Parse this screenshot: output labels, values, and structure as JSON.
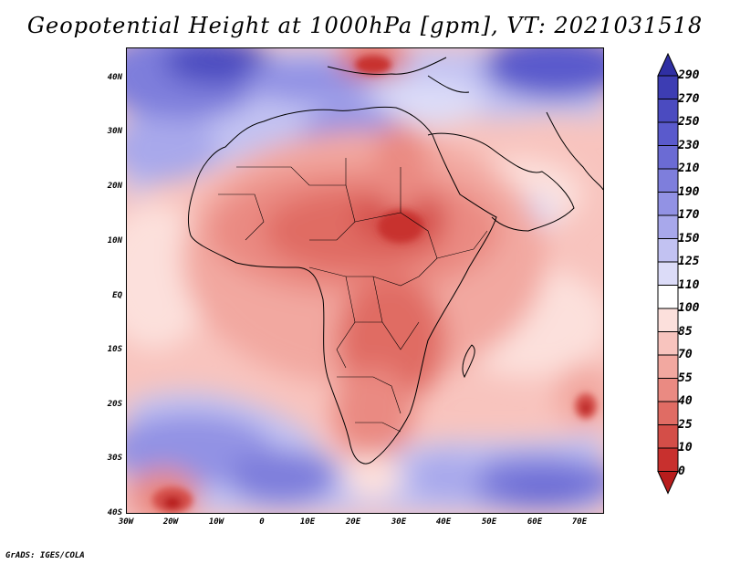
{
  "title": "Geopotential Height at 1000hPa [gpm], VT: 2021031518",
  "credit": "GrADS: IGES/COLA",
  "map": {
    "variable": "Geopotential Height",
    "level": "1000hPa",
    "units": "gpm",
    "valid_time": "2021031518",
    "lon_range": [
      -30,
      75
    ],
    "lat_range": [
      -40,
      45
    ],
    "lat_labels": [
      "40N",
      "30N",
      "20N",
      "10N",
      "EQ",
      "10S",
      "20S",
      "30S",
      "40S"
    ],
    "lon_labels": [
      "30W",
      "20W",
      "10W",
      "0",
      "10E",
      "20E",
      "30E",
      "40E",
      "50E",
      "60E",
      "70E"
    ]
  },
  "colorbar": {
    "labels": [
      "290",
      "270",
      "250",
      "230",
      "210",
      "190",
      "170",
      "150",
      "125",
      "110",
      "100",
      "85",
      "70",
      "55",
      "40",
      "25",
      "10",
      "0"
    ],
    "colors": [
      "#2f2fa3",
      "#3d3db3",
      "#4b4bc0",
      "#5a5acc",
      "#6b6bd4",
      "#7e7edc",
      "#9292e4",
      "#a8a8eb",
      "#c2c2f2",
      "#dcdcf8",
      "#ffffff",
      "#fce0dc",
      "#f8c4be",
      "#f2a8a0",
      "#ea8a82",
      "#e06c64",
      "#d44e48",
      "#c8302e",
      "#b81c1c"
    ]
  }
}
